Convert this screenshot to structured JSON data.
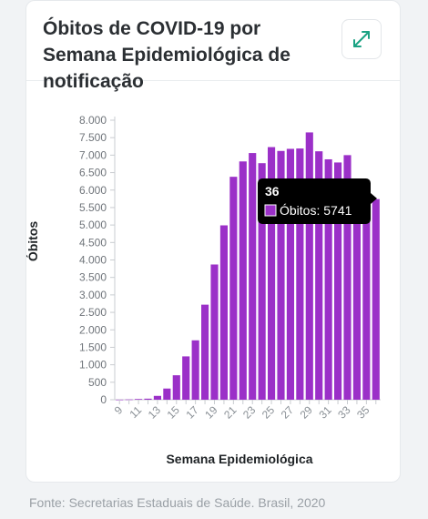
{
  "card": {
    "title": "Óbitos de COVID-19 por Semana Epidemiológica de notificação",
    "expand_icon": "expand-arrows-icon"
  },
  "footer": {
    "source": "Fonte: Secretarias Estaduais de Saúde. Brasil, 2020"
  },
  "tooltip": {
    "week": "36",
    "label": "Óbitos: 5741"
  },
  "colors": {
    "bar": "#9b30c8",
    "accent": "#1aa283",
    "tooltip_bg": "#000000"
  },
  "chart_data": {
    "type": "bar",
    "title": "",
    "xlabel": "Semana Epidemiológica",
    "ylabel": "Óbitos",
    "ylim": [
      0,
      8000
    ],
    "yticks": [
      0,
      500,
      1000,
      1500,
      2000,
      2500,
      3000,
      3500,
      4000,
      4500,
      5000,
      5500,
      6000,
      6500,
      7000,
      7500,
      8000
    ],
    "ytick_labels": [
      "0",
      "500",
      "1.000",
      "1.500",
      "2.000",
      "2.500",
      "3.000",
      "3.500",
      "4.000",
      "4.500",
      "5.000",
      "5.500",
      "6.000",
      "6.500",
      "7.000",
      "7.500",
      "8.000"
    ],
    "categories": [
      "9",
      "10",
      "11",
      "12",
      "13",
      "14",
      "15",
      "16",
      "17",
      "18",
      "19",
      "20",
      "21",
      "22",
      "23",
      "24",
      "25",
      "26",
      "27",
      "28",
      "29",
      "30",
      "31",
      "32",
      "33",
      "34",
      "35",
      "36"
    ],
    "xtick_labels_shown": [
      "9",
      "11",
      "13",
      "15",
      "17",
      "19",
      "21",
      "23",
      "25",
      "27",
      "29",
      "31",
      "33",
      "35"
    ],
    "values": [
      3,
      8,
      20,
      30,
      110,
      320,
      700,
      1240,
      1700,
      2720,
      3870,
      4990,
      6380,
      6820,
      7060,
      6770,
      7230,
      7120,
      7180,
      7190,
      7650,
      7110,
      6880,
      6790,
      7000,
      6000,
      5900,
      5741
    ],
    "grid": false,
    "legend": "none",
    "highlighted_category": "36"
  }
}
